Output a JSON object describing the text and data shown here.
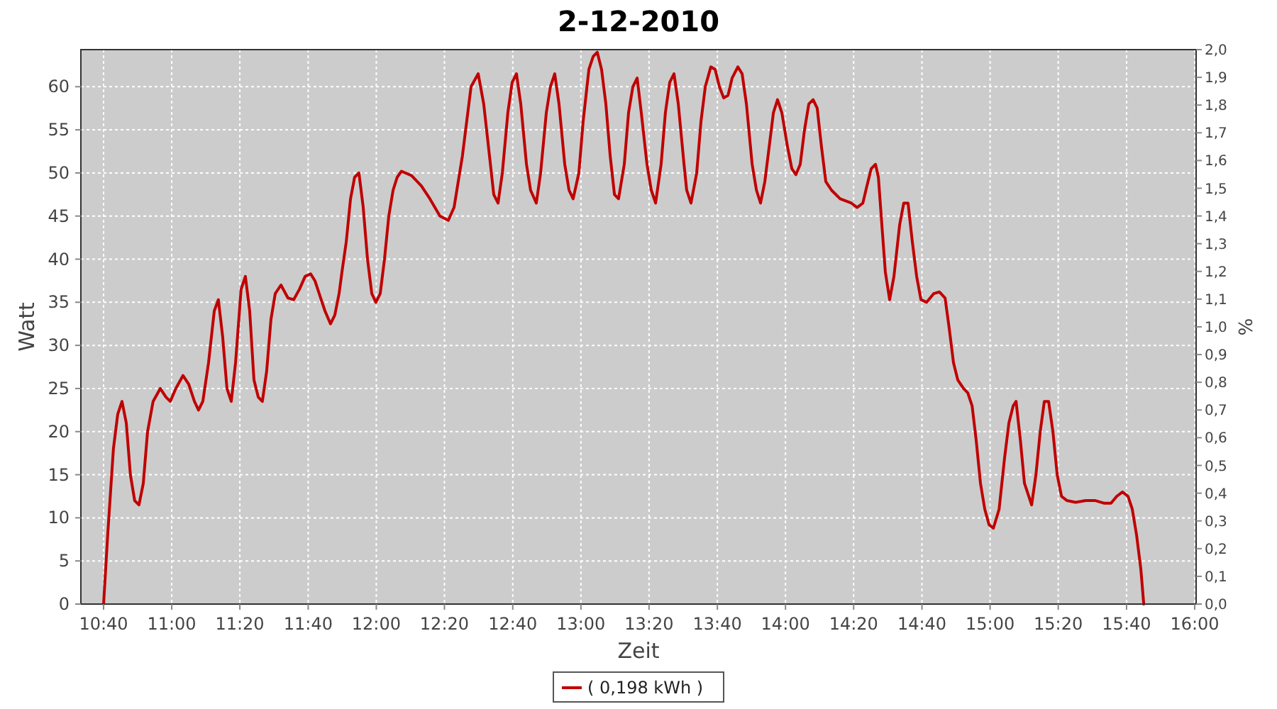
{
  "chart_data": {
    "type": "line",
    "title": "2-12-2010",
    "xlabel": "Zeit",
    "ylabel": "Watt",
    "y2label": "%",
    "xlim": [
      10.556,
      16.007
    ],
    "xticks": [
      {
        "value": 10.667,
        "label": "10:40"
      },
      {
        "value": 11,
        "label": "11:00"
      },
      {
        "value": 11.333,
        "label": "11:20"
      },
      {
        "value": 11.667,
        "label": "11:40"
      },
      {
        "value": 12,
        "label": "12:00"
      },
      {
        "value": 12.333,
        "label": "12:20"
      },
      {
        "value": 12.667,
        "label": "12:40"
      },
      {
        "value": 13,
        "label": "13:00"
      },
      {
        "value": 13.333,
        "label": "13:20"
      },
      {
        "value": 13.667,
        "label": "13:40"
      },
      {
        "value": 14,
        "label": "14:00"
      },
      {
        "value": 14.333,
        "label": "14:20"
      },
      {
        "value": 14.667,
        "label": "14:40"
      },
      {
        "value": 15,
        "label": "15:00"
      },
      {
        "value": 15.333,
        "label": "15:20"
      },
      {
        "value": 15.667,
        "label": "15:40"
      },
      {
        "value": 16,
        "label": "16:00"
      }
    ],
    "ylim": [
      0,
      64.3
    ],
    "yticks": [
      0,
      5,
      10,
      15,
      20,
      25,
      30,
      35,
      40,
      45,
      50,
      55,
      60
    ],
    "y2lim": [
      0,
      2
    ],
    "y2ticks": [
      {
        "value": 0,
        "label": "0,0"
      },
      {
        "value": 0.1,
        "label": "0,1"
      },
      {
        "value": 0.2,
        "label": "0,2"
      },
      {
        "value": 0.3,
        "label": "0,3"
      },
      {
        "value": 0.4,
        "label": "0,4"
      },
      {
        "value": 0.5,
        "label": "0,5"
      },
      {
        "value": 0.6,
        "label": "0,6"
      },
      {
        "value": 0.7,
        "label": "0,7"
      },
      {
        "value": 0.8,
        "label": "0,8"
      },
      {
        "value": 0.9,
        "label": "0,9"
      },
      {
        "value": 1,
        "label": "1,0"
      },
      {
        "value": 1.1,
        "label": "1,1"
      },
      {
        "value": 1.2,
        "label": "1,2"
      },
      {
        "value": 1.3,
        "label": "1,3"
      },
      {
        "value": 1.4,
        "label": "1,4"
      },
      {
        "value": 1.5,
        "label": "1,5"
      },
      {
        "value": 1.6,
        "label": "1,6"
      },
      {
        "value": 1.7,
        "label": "1,7"
      },
      {
        "value": 1.8,
        "label": "1,8"
      },
      {
        "value": 1.9,
        "label": "1,9"
      },
      {
        "value": 2,
        "label": "2,0"
      }
    ],
    "grid": true,
    "legend": "bottom",
    "marker": "none",
    "line_style": "solid",
    "series": [
      {
        "name": "( 0,198 kWh )",
        "color": "#c00000",
        "x": [
          10.667,
          10.687,
          10.715,
          10.736,
          10.757,
          10.778,
          10.798,
          10.819,
          10.84,
          10.861,
          10.882,
          10.909,
          10.944,
          10.972,
          10.993,
          11.02,
          11.055,
          11.083,
          11.111,
          11.131,
          11.152,
          11.18,
          11.208,
          11.228,
          11.249,
          11.27,
          11.291,
          11.312,
          11.339,
          11.36,
          11.381,
          11.402,
          11.423,
          11.443,
          11.464,
          11.485,
          11.506,
          11.534,
          11.568,
          11.596,
          11.624,
          11.652,
          11.679,
          11.7,
          11.728,
          11.749,
          11.776,
          11.797,
          11.818,
          11.832,
          11.853,
          11.874,
          11.894,
          11.915,
          11.936,
          11.957,
          11.978,
          11.998,
          12.019,
          12.04,
          12.061,
          12.082,
          12.102,
          12.123,
          12.172,
          12.22,
          12.262,
          12.311,
          12.352,
          12.38,
          12.421,
          12.463,
          12.498,
          12.525,
          12.553,
          12.574,
          12.595,
          12.616,
          12.643,
          12.664,
          12.685,
          12.706,
          12.734,
          12.754,
          12.782,
          12.803,
          12.831,
          12.851,
          12.872,
          12.893,
          12.921,
          12.942,
          12.962,
          12.99,
          13.011,
          13.039,
          13.06,
          13.08,
          13.101,
          13.122,
          13.143,
          13.164,
          13.184,
          13.212,
          13.233,
          13.254,
          13.275,
          13.295,
          13.323,
          13.344,
          13.365,
          13.392,
          13.413,
          13.434,
          13.455,
          13.476,
          13.504,
          13.517,
          13.538,
          13.566,
          13.587,
          13.608,
          13.635,
          13.656,
          13.677,
          13.698,
          13.719,
          13.739,
          13.767,
          13.788,
          13.809,
          13.837,
          13.858,
          13.878,
          13.899,
          13.92,
          13.941,
          13.961,
          13.982,
          14.01,
          14.031,
          14.051,
          14.072,
          14.093,
          14.114,
          14.135,
          14.155,
          14.176,
          14.197,
          14.225,
          14.267,
          14.322,
          14.35,
          14.378,
          14.398,
          14.419,
          14.44,
          14.454,
          14.474,
          14.488,
          14.509,
          14.53,
          14.558,
          14.578,
          14.599,
          14.62,
          14.641,
          14.662,
          14.69,
          14.724,
          14.752,
          14.78,
          14.8,
          14.821,
          14.842,
          14.87,
          14.891,
          14.912,
          14.932,
          14.953,
          14.974,
          14.995,
          15.016,
          15.044,
          15.071,
          15.092,
          15.113,
          15.127,
          15.148,
          15.168,
          15.189,
          15.203,
          15.224,
          15.245,
          15.265,
          15.286,
          15.307,
          15.328,
          15.349,
          15.376,
          15.418,
          15.467,
          15.515,
          15.556,
          15.591,
          15.619,
          15.647,
          15.674,
          15.695,
          15.716,
          15.737,
          15.751
        ],
        "values": [
          0,
          8,
          18,
          22,
          23.5,
          21,
          15,
          12,
          11.5,
          14,
          20,
          23.5,
          25,
          24,
          23.5,
          25,
          26.5,
          25.5,
          23.5,
          22.5,
          23.5,
          28,
          34,
          35.3,
          31,
          25,
          23.5,
          28,
          36.5,
          38,
          34,
          26,
          24,
          23.5,
          27,
          33,
          36,
          37,
          35.5,
          35.3,
          36.5,
          38,
          38.3,
          37.5,
          35.5,
          34,
          32.5,
          33.5,
          36,
          38.5,
          42,
          47,
          49.5,
          50,
          46,
          40,
          36,
          35,
          36,
          40,
          45,
          48,
          49.5,
          50.2,
          49.7,
          48.5,
          47,
          45,
          44.5,
          46,
          52,
          60,
          61.5,
          58,
          52,
          47.5,
          46.5,
          50,
          57,
          60.5,
          61.5,
          58,
          51,
          48,
          46.5,
          50,
          57,
          60,
          61.5,
          58,
          51,
          48,
          47,
          50,
          56,
          62,
          63.5,
          64,
          62,
          58,
          52,
          47.5,
          47,
          51,
          57,
          60,
          61,
          57,
          51,
          48,
          46.5,
          51,
          57,
          60.5,
          61.5,
          58,
          51,
          48,
          46.5,
          50,
          56,
          60,
          62.3,
          62,
          60,
          58.7,
          59,
          61,
          62.3,
          61.5,
          58,
          51,
          48,
          46.5,
          49,
          53,
          57,
          58.5,
          57,
          53,
          50.5,
          49.8,
          51,
          55,
          58,
          58.5,
          57.5,
          53,
          49,
          48,
          47,
          46.5,
          46,
          46.5,
          48.5,
          50.5,
          51,
          49.5,
          43,
          38.5,
          35.3,
          38,
          44,
          46.5,
          46.5,
          42,
          38,
          35.3,
          35,
          36,
          36.2,
          35.5,
          32,
          28,
          26,
          25,
          24.5,
          23,
          19,
          14,
          11,
          9.2,
          8.8,
          11,
          17,
          21,
          23,
          23.5,
          19,
          14,
          12.5,
          11.5,
          15,
          20,
          23.5,
          23.5,
          20,
          15,
          12.5,
          12,
          11.8,
          12,
          12,
          11.7,
          11.7,
          12.5,
          13,
          12.5,
          11,
          8,
          4,
          0
        ]
      }
    ]
  }
}
